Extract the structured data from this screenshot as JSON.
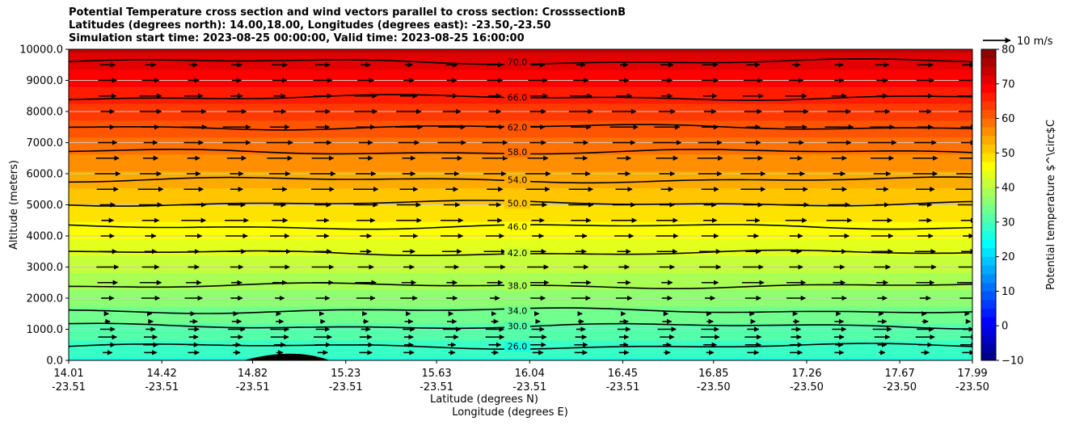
{
  "chart_data": {
    "type": "heatmap",
    "title_lines": [
      "Potential Temperature cross section and wind vectors parallel to cross section: CrosssectionB",
      "Latitudes (degrees north): 14.00,18.00, Longitudes (degrees east): -23.50,-23.50",
      "Simulation start time: 2023-08-25 00:00:00, Valid time: 2023-08-25 16:00:00"
    ],
    "ylabel": "Altitude (meters)",
    "xlabel_lat": "Latitude (degrees N)",
    "xlabel_lon": "Longitude (degrees E)",
    "ylim": [
      0,
      10000
    ],
    "xlim": [
      14.01,
      17.99
    ],
    "yticks": [
      0,
      1000,
      2000,
      3000,
      4000,
      5000,
      6000,
      7000,
      8000,
      9000,
      10000
    ],
    "ytick_labels": [
      "0.0",
      "1000.0",
      "2000.0",
      "3000.0",
      "4000.0",
      "5000.0",
      "6000.0",
      "7000.0",
      "8000.0",
      "9000.0",
      "10000.0"
    ],
    "xticks": [
      {
        "lat": "14.01",
        "lon": "-23.51"
      },
      {
        "lat": "14.42",
        "lon": "-23.51"
      },
      {
        "lat": "14.82",
        "lon": "-23.51"
      },
      {
        "lat": "15.23",
        "lon": "-23.51"
      },
      {
        "lat": "15.63",
        "lon": "-23.51"
      },
      {
        "lat": "16.04",
        "lon": "-23.51"
      },
      {
        "lat": "16.45",
        "lon": "-23.51"
      },
      {
        "lat": "16.85",
        "lon": "-23.50"
      },
      {
        "lat": "17.26",
        "lon": "-23.50"
      },
      {
        "lat": "17.67",
        "lon": "-23.50"
      },
      {
        "lat": "17.99",
        "lon": "-23.50"
      }
    ],
    "colorbar": {
      "label": "Potential temperature $^\\circ$C",
      "min": -10,
      "max": 80,
      "step": 2.5,
      "ticks": [
        -10,
        0,
        10,
        20,
        30,
        40,
        50,
        60,
        70,
        80
      ],
      "tick_labels": [
        "−10",
        "0",
        "10",
        "20",
        "30",
        "40",
        "50",
        "60",
        "70",
        "80"
      ]
    },
    "surface_temperature": 27,
    "lapse_rate_per_km": 4.6,
    "contours": [
      {
        "level": 26.0,
        "label": "26.0",
        "alt": 450
      },
      {
        "level": 30.0,
        "label": "30.0",
        "alt": 1100
      },
      {
        "level": 34.0,
        "label": "34.0",
        "alt": 1600
      },
      {
        "level": 38.0,
        "label": "38.0",
        "alt": 2400
      },
      {
        "level": 42.0,
        "label": "42.0",
        "alt": 3450
      },
      {
        "level": 46.0,
        "label": "46.0",
        "alt": 4300
      },
      {
        "level": 50.0,
        "label": "50.0",
        "alt": 5050
      },
      {
        "level": 54.0,
        "label": "54.0",
        "alt": 5800
      },
      {
        "level": 58.0,
        "label": "58.0",
        "alt": 6700
      },
      {
        "level": 62.0,
        "label": "62.0",
        "alt": 7500
      },
      {
        "level": 66.0,
        "label": "66.0",
        "alt": 8450
      },
      {
        "level": 70.0,
        "label": "70.0",
        "alt": 9600
      }
    ],
    "wind": {
      "key_label": "10 m/s",
      "key_speed_ms": 10,
      "x_count": 21,
      "levels": [
        250,
        500,
        750,
        1000,
        1250,
        1500,
        2000,
        2500,
        3000,
        3500,
        4000,
        4500,
        5000,
        5500,
        6000,
        6500,
        7000,
        7500,
        8000,
        8500,
        9000,
        9500
      ],
      "speed_by_level_ms": [
        4,
        5,
        6,
        6,
        3,
        1,
        6,
        7,
        7,
        7,
        7,
        8,
        8,
        8,
        8,
        8,
        9,
        9,
        8,
        7,
        6,
        5
      ]
    },
    "terrain": {
      "lat_start": 14.78,
      "lat_peak": 15.0,
      "lat_end": 15.16,
      "peak_alt": 220
    }
  }
}
